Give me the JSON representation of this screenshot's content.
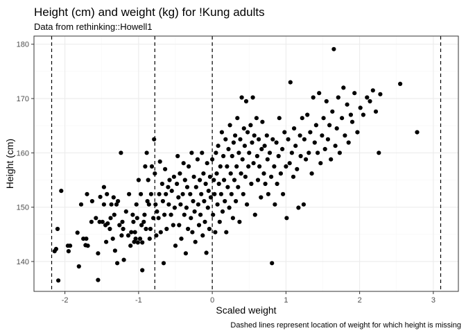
{
  "chart_data": {
    "type": "scatter",
    "title": "Height (cm) and weight (kg) for !Kung adults",
    "subtitle": "Data from rethinking::Howell1",
    "xlabel": "Scaled weight",
    "ylabel": "Height (cm)",
    "caption": "Dashed lines represent location of weight for which height is missing",
    "xlim": [
      -2.42,
      3.34
    ],
    "ylim": [
      134.5,
      181.5
    ],
    "x_ticks": [
      -2,
      -1,
      0,
      1,
      2,
      3
    ],
    "y_ticks": [
      140,
      150,
      160,
      170,
      180
    ],
    "grid": true,
    "legend": "none",
    "point_color": "#000000",
    "dashed_vlines_x": [
      -2.18,
      -0.78,
      0.0,
      3.1
    ],
    "points": [
      [
        -2.14,
        141.9
      ],
      [
        -2.12,
        142.3
      ],
      [
        -2.1,
        146.0
      ],
      [
        -2.09,
        136.5
      ],
      [
        -2.05,
        153.0
      ],
      [
        -1.96,
        142.9
      ],
      [
        -1.95,
        141.9
      ],
      [
        -1.93,
        142.9
      ],
      [
        -1.83,
        145.3
      ],
      [
        -1.81,
        139.1
      ],
      [
        -1.78,
        150.5
      ],
      [
        -1.75,
        144.2
      ],
      [
        -1.72,
        143.0
      ],
      [
        -1.71,
        144.2
      ],
      [
        -1.7,
        152.4
      ],
      [
        -1.69,
        142.9
      ],
      [
        -1.64,
        147.3
      ],
      [
        -1.63,
        151.1
      ],
      [
        -1.58,
        148.0
      ],
      [
        -1.55,
        136.6
      ],
      [
        -1.55,
        141.5
      ],
      [
        -1.53,
        147.3
      ],
      [
        -1.52,
        151.9
      ],
      [
        -1.49,
        147.3
      ],
      [
        -1.47,
        153.7
      ],
      [
        -1.47,
        150.5
      ],
      [
        -1.45,
        146.7
      ],
      [
        -1.44,
        143.6
      ],
      [
        -1.43,
        152.4
      ],
      [
        -1.42,
        147.0
      ],
      [
        -1.39,
        146.0
      ],
      [
        -1.38,
        148.0
      ],
      [
        -1.37,
        150.5
      ],
      [
        -1.35,
        144.2
      ],
      [
        -1.34,
        151.8
      ],
      [
        -1.33,
        148.6
      ],
      [
        -1.32,
        142.0
      ],
      [
        -1.3,
        150.5
      ],
      [
        -1.29,
        139.7
      ],
      [
        -1.28,
        151.1
      ],
      [
        -1.26,
        146.7
      ],
      [
        -1.24,
        160.0
      ],
      [
        -1.23,
        144.8
      ],
      [
        -1.22,
        147.3
      ],
      [
        -1.21,
        146.0
      ],
      [
        -1.2,
        140.3
      ],
      [
        -1.17,
        149.2
      ],
      [
        -1.14,
        144.8
      ],
      [
        -1.13,
        152.4
      ],
      [
        -1.11,
        142.9
      ],
      [
        -1.1,
        145.4
      ],
      [
        -1.08,
        148.6
      ],
      [
        -1.07,
        147.3
      ],
      [
        -1.06,
        143.6
      ],
      [
        -1.05,
        145.4
      ],
      [
        -1.04,
        144.2
      ],
      [
        -1.03,
        150.5
      ],
      [
        -1.02,
        148.0
      ],
      [
        -1.01,
        143.5
      ],
      [
        -1.0,
        155.0
      ],
      [
        -0.98,
        144.2
      ],
      [
        -0.97,
        152.4
      ],
      [
        -0.96,
        146.7
      ],
      [
        -0.95,
        138.4
      ],
      [
        -0.95,
        143.5
      ],
      [
        -0.93,
        147.3
      ],
      [
        -0.92,
        148.6
      ],
      [
        -0.91,
        157.5
      ],
      [
        -0.9,
        146.0
      ],
      [
        -0.89,
        160.0
      ],
      [
        -0.88,
        151.1
      ],
      [
        -0.87,
        155.0
      ],
      [
        -0.86,
        150.5
      ],
      [
        -0.85,
        144.2
      ],
      [
        -0.84,
        146.0
      ],
      [
        -0.83,
        152.4
      ],
      [
        -0.82,
        157.5
      ],
      [
        -0.8,
        148.0
      ],
      [
        -0.79,
        162.5
      ],
      [
        -0.78,
        156.2
      ],
      [
        -0.77,
        150.5
      ],
      [
        -0.76,
        144.8
      ],
      [
        -0.75,
        149.2
      ],
      [
        -0.73,
        148.0
      ],
      [
        -0.72,
        152.4
      ],
      [
        -0.71,
        158.4
      ],
      [
        -0.7,
        145.4
      ],
      [
        -0.68,
        154.3
      ],
      [
        -0.67,
        151.1
      ],
      [
        -0.66,
        139.7
      ],
      [
        -0.65,
        148.6
      ],
      [
        -0.64,
        157.0
      ],
      [
        -0.63,
        152.4
      ],
      [
        -0.62,
        146.0
      ],
      [
        -0.6,
        153.7
      ],
      [
        -0.59,
        150.5
      ],
      [
        -0.58,
        155.0
      ],
      [
        -0.56,
        148.6
      ],
      [
        -0.55,
        153.0
      ],
      [
        -0.53,
        146.7
      ],
      [
        -0.52,
        155.6
      ],
      [
        -0.51,
        149.9
      ],
      [
        -0.5,
        142.9
      ],
      [
        -0.48,
        154.3
      ],
      [
        -0.47,
        159.4
      ],
      [
        -0.46,
        151.8
      ],
      [
        -0.45,
        146.7
      ],
      [
        -0.44,
        156.2
      ],
      [
        -0.43,
        150.5
      ],
      [
        -0.42,
        144.2
      ],
      [
        -0.4,
        152.4
      ],
      [
        -0.39,
        158.1
      ],
      [
        -0.38,
        148.6
      ],
      [
        -0.37,
        155.0
      ],
      [
        -0.36,
        141.5
      ],
      [
        -0.35,
        149.9
      ],
      [
        -0.34,
        153.7
      ],
      [
        -0.33,
        146.0
      ],
      [
        -0.32,
        157.5
      ],
      [
        -0.3,
        152.4
      ],
      [
        -0.29,
        148.0
      ],
      [
        -0.28,
        160.0
      ],
      [
        -0.27,
        145.4
      ],
      [
        -0.26,
        151.1
      ],
      [
        -0.25,
        155.6
      ],
      [
        -0.24,
        149.2
      ],
      [
        -0.23,
        143.6
      ],
      [
        -0.22,
        153.7
      ],
      [
        -0.2,
        158.8
      ],
      [
        -0.19,
        150.5
      ],
      [
        -0.18,
        146.7
      ],
      [
        -0.17,
        155.0
      ],
      [
        -0.16,
        148.6
      ],
      [
        -0.15,
        152.4
      ],
      [
        -0.14,
        160.0
      ],
      [
        -0.13,
        144.8
      ],
      [
        -0.12,
        156.2
      ],
      [
        -0.11,
        151.1
      ],
      [
        -0.1,
        147.3
      ],
      [
        -0.09,
        154.3
      ],
      [
        -0.08,
        141.6
      ],
      [
        -0.07,
        158.1
      ],
      [
        -0.06,
        149.9
      ],
      [
        -0.05,
        153.0
      ],
      [
        -0.04,
        146.0
      ],
      [
        -0.03,
        155.6
      ],
      [
        -0.02,
        151.8
      ],
      [
        0.0,
        158.8
      ],
      [
        0.01,
        148.6
      ],
      [
        0.02,
        155.0
      ],
      [
        0.03,
        152.4
      ],
      [
        0.04,
        145.4
      ],
      [
        0.05,
        160.0
      ],
      [
        0.06,
        156.2
      ],
      [
        0.07,
        150.5
      ],
      [
        0.08,
        161.3
      ],
      [
        0.09,
        154.3
      ],
      [
        0.1,
        147.3
      ],
      [
        0.11,
        157.5
      ],
      [
        0.12,
        152.4
      ],
      [
        0.13,
        163.8
      ],
      [
        0.14,
        149.2
      ],
      [
        0.15,
        159.4
      ],
      [
        0.16,
        155.0
      ],
      [
        0.17,
        151.1
      ],
      [
        0.18,
        162.5
      ],
      [
        0.19,
        145.4
      ],
      [
        0.2,
        157.5
      ],
      [
        0.21,
        153.7
      ],
      [
        0.22,
        160.7
      ],
      [
        0.23,
        149.9
      ],
      [
        0.24,
        165.1
      ],
      [
        0.25,
        156.2
      ],
      [
        0.26,
        152.4
      ],
      [
        0.27,
        159.4
      ],
      [
        0.28,
        148.0
      ],
      [
        0.29,
        161.9
      ],
      [
        0.3,
        155.0
      ],
      [
        0.31,
        163.2
      ],
      [
        0.32,
        151.1
      ],
      [
        0.33,
        157.5
      ],
      [
        0.34,
        166.4
      ],
      [
        0.35,
        153.7
      ],
      [
        0.36,
        160.0
      ],
      [
        0.37,
        147.3
      ],
      [
        0.38,
        162.5
      ],
      [
        0.39,
        156.2
      ],
      [
        0.4,
        170.2
      ],
      [
        0.41,
        158.8
      ],
      [
        0.42,
        152.4
      ],
      [
        0.43,
        164.5
      ],
      [
        0.44,
        161.3
      ],
      [
        0.45,
        155.6
      ],
      [
        0.46,
        169.5
      ],
      [
        0.47,
        150.5
      ],
      [
        0.48,
        163.8
      ],
      [
        0.49,
        157.5
      ],
      [
        0.5,
        160.0
      ],
      [
        0.52,
        165.1
      ],
      [
        0.53,
        154.3
      ],
      [
        0.54,
        161.9
      ],
      [
        0.55,
        170.2
      ],
      [
        0.56,
        158.1
      ],
      [
        0.57,
        163.2
      ],
      [
        0.58,
        148.6
      ],
      [
        0.6,
        166.4
      ],
      [
        0.61,
        159.4
      ],
      [
        0.62,
        155.0
      ],
      [
        0.63,
        162.5
      ],
      [
        0.64,
        157.5
      ],
      [
        0.66,
        151.8
      ],
      [
        0.67,
        160.7
      ],
      [
        0.68,
        165.7
      ],
      [
        0.7,
        156.2
      ],
      [
        0.71,
        161.3
      ],
      [
        0.72,
        154.3
      ],
      [
        0.74,
        163.2
      ],
      [
        0.75,
        158.8
      ],
      [
        0.76,
        152.4
      ],
      [
        0.78,
        160.0
      ],
      [
        0.8,
        155.6
      ],
      [
        0.81,
        139.7
      ],
      [
        0.82,
        162.5
      ],
      [
        0.84,
        157.5
      ],
      [
        0.85,
        150.5
      ],
      [
        0.87,
        161.9
      ],
      [
        0.88,
        154.3
      ],
      [
        0.9,
        159.4
      ],
      [
        0.91,
        166.4
      ],
      [
        0.93,
        156.2
      ],
      [
        0.95,
        160.7
      ],
      [
        0.96,
        152.4
      ],
      [
        0.98,
        163.8
      ],
      [
        1.0,
        157.5
      ],
      [
        1.01,
        148.0
      ],
      [
        1.03,
        162.5
      ],
      [
        1.05,
        158.1
      ],
      [
        1.06,
        173.0
      ],
      [
        1.08,
        160.0
      ],
      [
        1.1,
        155.6
      ],
      [
        1.11,
        164.5
      ],
      [
        1.13,
        161.3
      ],
      [
        1.15,
        157.0
      ],
      [
        1.17,
        149.9
      ],
      [
        1.19,
        163.2
      ],
      [
        1.2,
        159.4
      ],
      [
        1.22,
        166.4
      ],
      [
        1.24,
        150.5
      ],
      [
        1.25,
        162.5
      ],
      [
        1.27,
        158.8
      ],
      [
        1.29,
        167.0
      ],
      [
        1.31,
        160.0
      ],
      [
        1.33,
        163.8
      ],
      [
        1.35,
        156.2
      ],
      [
        1.37,
        170.2
      ],
      [
        1.39,
        161.9
      ],
      [
        1.41,
        165.1
      ],
      [
        1.43,
        160.0
      ],
      [
        1.45,
        171.0
      ],
      [
        1.47,
        158.1
      ],
      [
        1.49,
        163.2
      ],
      [
        1.51,
        166.4
      ],
      [
        1.53,
        160.7
      ],
      [
        1.55,
        169.5
      ],
      [
        1.57,
        162.5
      ],
      [
        1.59,
        165.1
      ],
      [
        1.61,
        158.8
      ],
      [
        1.63,
        167.6
      ],
      [
        1.65,
        179.1
      ],
      [
        1.67,
        161.3
      ],
      [
        1.69,
        164.5
      ],
      [
        1.71,
        170.2
      ],
      [
        1.73,
        160.0
      ],
      [
        1.76,
        166.4
      ],
      [
        1.78,
        172.0
      ],
      [
        1.8,
        163.2
      ],
      [
        1.83,
        168.9
      ],
      [
        1.85,
        161.9
      ],
      [
        1.88,
        167.0
      ],
      [
        1.9,
        165.7
      ],
      [
        1.93,
        171.0
      ],
      [
        1.97,
        163.8
      ],
      [
        2.01,
        168.3
      ],
      [
        2.05,
        167.0
      ],
      [
        2.1,
        170.2
      ],
      [
        2.14,
        169.5
      ],
      [
        2.18,
        171.5
      ],
      [
        2.22,
        167.6
      ],
      [
        2.26,
        160.0
      ],
      [
        2.28,
        170.8
      ],
      [
        2.55,
        172.7
      ],
      [
        2.78,
        163.8
      ]
    ]
  }
}
